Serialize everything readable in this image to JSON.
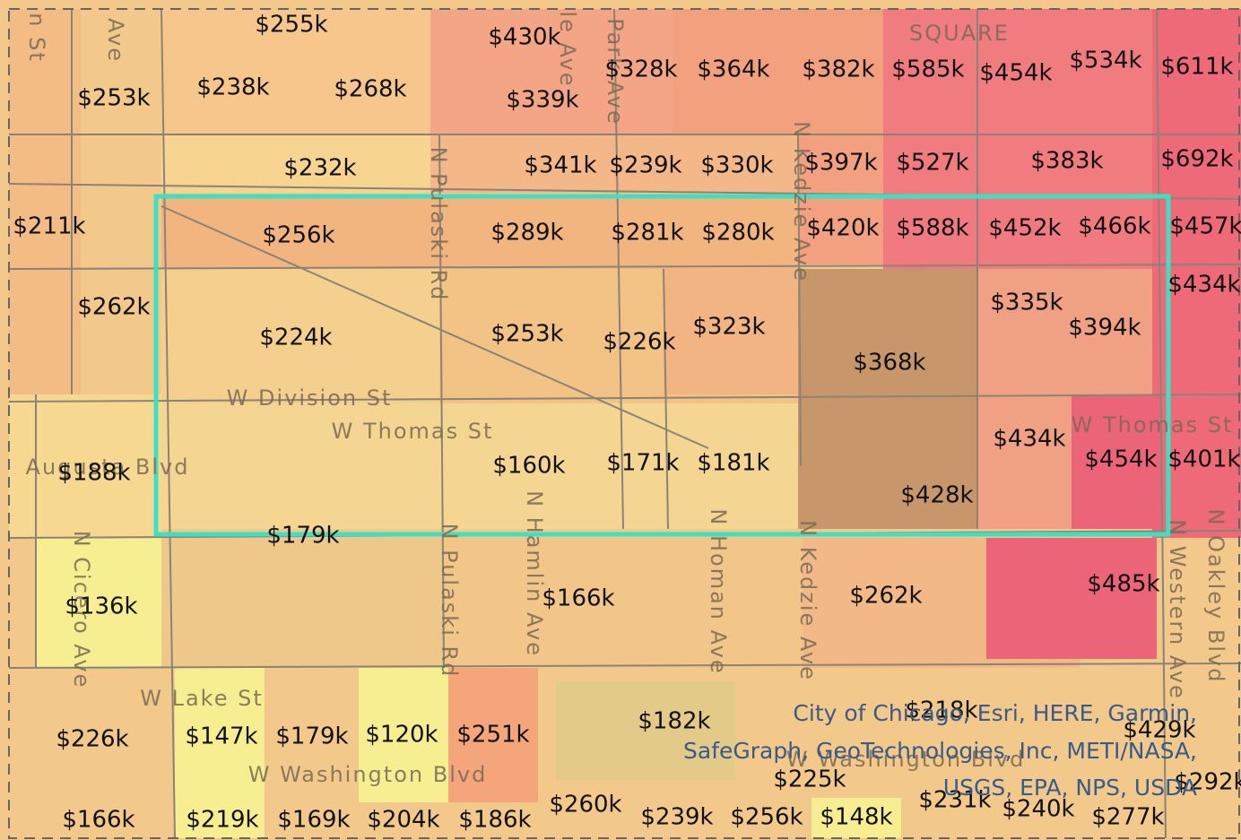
{
  "price_labels": [
    "$255k",
    "$430k",
    "$328k",
    "$364k",
    "$382k",
    "$585k",
    "$454k",
    "$534k",
    "$611k",
    "$253k",
    "$238k",
    "$268k",
    "$339k",
    "$232k",
    "$341k",
    "$239k",
    "$330k",
    "$397k",
    "$527k",
    "$383k",
    "$692k",
    "$211k",
    "$256k",
    "$289k",
    "$281k",
    "$280k",
    "$420k",
    "$588k",
    "$452k",
    "$466k",
    "$457k",
    "$434k",
    "$262k",
    "$335k",
    "$224k",
    "$253k",
    "$226k",
    "$323k",
    "$394k",
    "$368k",
    "$434k",
    "$188k",
    "$160k",
    "$171k",
    "$181k",
    "$454k",
    "$401k",
    "$428k",
    "$179k",
    "$136k",
    "$166k",
    "$262k",
    "$485k",
    "$226k",
    "$147k",
    "$179k",
    "$120k",
    "$251k",
    "$182k",
    "$218k",
    "$429k",
    "$225k",
    "$292k",
    "$231k",
    "$240k",
    "$166k",
    "$219k",
    "$169k",
    "$204k",
    "$186k",
    "$260k",
    "$239k",
    "$256k",
    "$148k",
    "$277k"
  ],
  "street_labels": [
    "n St",
    "Ave",
    "SQUARE",
    "le Ave",
    "Park Ave",
    "N Pulaski Rd",
    "N Kedzie Ave",
    "W Division St",
    "W Thomas St",
    "W Thomas St",
    "Augusta Blvd",
    "N Cicero Ave",
    "N Hamlin Ave",
    "N Homan Ave",
    "N Kedzie Ave",
    "N Pulaski Rd",
    "N Western Ave",
    "N Oakley Blvd",
    "W Lake St",
    "W Washington Blvd",
    "W Washington Blvd"
  ],
  "attribution": [
    "City of Chicago, Esri, HERE, Garmin,",
    "SafeGraph, GeoTechnologies, Inc, METI/NASA,",
    "USGS, EPA, NPS, USDA"
  ]
}
